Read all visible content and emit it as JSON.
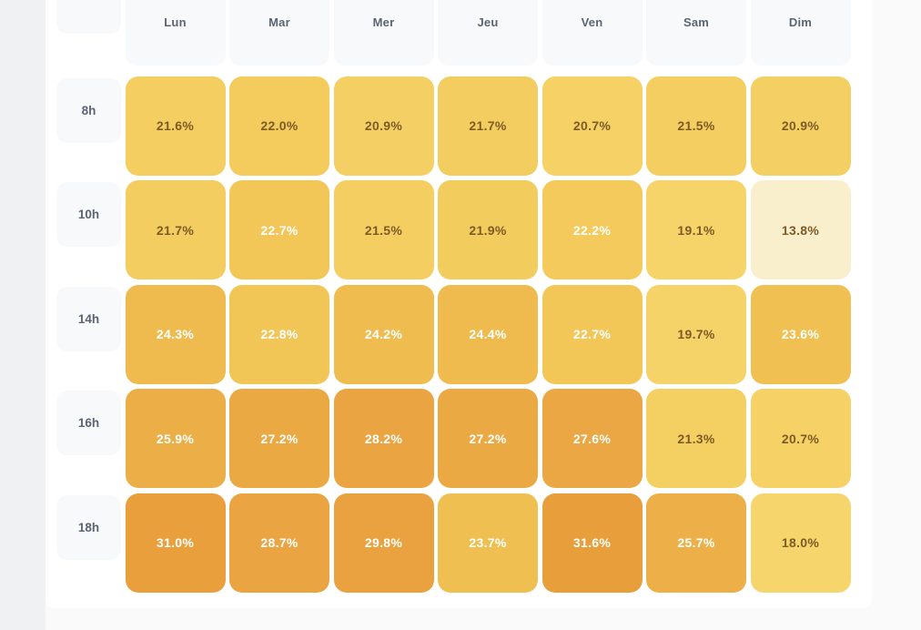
{
  "chart_data": {
    "type": "heatmap",
    "title": "",
    "x_labels": [
      "Lun",
      "Mar",
      "Mer",
      "Jeu",
      "Ven",
      "Sam",
      "Dim"
    ],
    "y_labels": [
      "8h",
      "10h",
      "14h",
      "16h",
      "18h"
    ],
    "unit": "%",
    "values": [
      [
        21.6,
        22.0,
        20.9,
        21.7,
        20.7,
        21.5,
        20.9
      ],
      [
        21.7,
        22.7,
        21.5,
        21.9,
        22.2,
        19.1,
        13.8
      ],
      [
        24.3,
        22.8,
        24.2,
        24.4,
        22.7,
        19.7,
        23.6
      ],
      [
        25.9,
        27.2,
        28.2,
        27.2,
        27.6,
        21.3,
        20.7
      ],
      [
        31.0,
        28.7,
        29.8,
        23.7,
        31.6,
        25.7,
        18.0
      ]
    ],
    "display_values": [
      [
        "21.6%",
        "22.0%",
        "20.9%",
        "21.7%",
        "20.7%",
        "21.5%",
        "20.9%"
      ],
      [
        "21.7%",
        "22.7%",
        "21.5%",
        "21.9%",
        "22.2%",
        "19.1%",
        "13.8%"
      ],
      [
        "24.3%",
        "22.8%",
        "24.2%",
        "24.4%",
        "22.7%",
        "19.7%",
        "23.6%"
      ],
      [
        "25.9%",
        "27.2%",
        "28.2%",
        "27.2%",
        "27.6%",
        "21.3%",
        "20.7%"
      ],
      [
        "31.0%",
        "28.7%",
        "29.8%",
        "23.7%",
        "31.6%",
        "25.7%",
        "18.0%"
      ]
    ],
    "min": 13.8,
    "max": 31.6,
    "legend": "none",
    "grid_style": "rounded-tiles"
  },
  "style": {
    "page_bg": "#FAFAFA",
    "gutter_bg": "#EFF1F2",
    "card_bg": "#FFFFFF",
    "tile_bg": "#F8F9FA",
    "label_color": "#5B6472",
    "value_dark_color": "#7D5B26",
    "value_light_color": "#FFFFFF",
    "white_text_threshold": 22.05,
    "color_stops": [
      {
        "v": 13.8,
        "c": "#FAEFCC"
      },
      {
        "v": 18.0,
        "c": "#F6D56C"
      },
      {
        "v": 20.5,
        "c": "#F5D267"
      },
      {
        "v": 22.0,
        "c": "#F3CC5D"
      },
      {
        "v": 23.0,
        "c": "#F1C455"
      },
      {
        "v": 24.5,
        "c": "#EFBA4E"
      },
      {
        "v": 26.0,
        "c": "#ECAE47"
      },
      {
        "v": 28.0,
        "c": "#EAA542"
      },
      {
        "v": 31.6,
        "c": "#E89E3B"
      }
    ]
  }
}
